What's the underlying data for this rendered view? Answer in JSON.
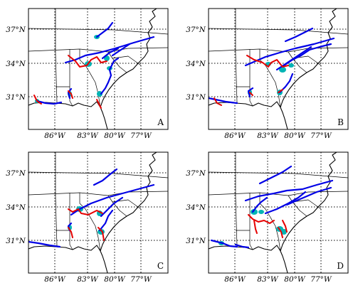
{
  "lat_ticks": [
    "37°N",
    "34°N",
    "31°N"
  ],
  "lon_ticks": [
    "86°W",
    "83°W",
    "80°W",
    "77°W"
  ],
  "panels": [
    {
      "label": "A"
    },
    {
      "label": "B"
    },
    {
      "label": "C"
    },
    {
      "label": "D"
    }
  ],
  "colors": {
    "track_primary": "#0000e6",
    "track_secondary": "#e60000",
    "cluster": "#00b4b4",
    "coastline": "#000000"
  }
}
